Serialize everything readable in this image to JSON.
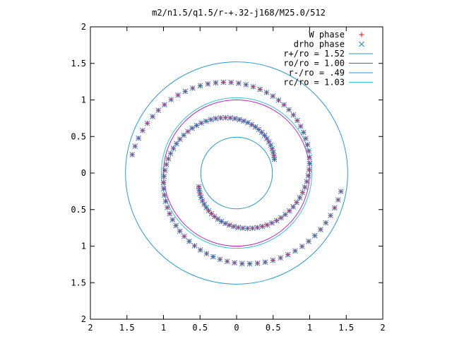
{
  "chart_data": {
    "type": "scatter",
    "title": "m2/n1.5/q1.5/r-+.32-j168/M25.0/512",
    "xlabel": "",
    "ylabel": "",
    "xlim": [
      -2,
      2
    ],
    "ylim": [
      -2,
      2
    ],
    "x_ticks": [
      -2,
      -1.5,
      -1,
      -0.5,
      0,
      0.5,
      1,
      1.5,
      2
    ],
    "y_ticks": [
      -2,
      -1.5,
      -1,
      -0.5,
      0,
      0.5,
      1,
      1.5,
      2
    ],
    "x_tick_labels": [
      "2",
      "1.5",
      "1",
      "0.5",
      "0",
      "0.5",
      "1",
      "1.5",
      "2"
    ],
    "y_tick_labels": [
      "2",
      "1.5",
      "1",
      "0.5",
      "0",
      "0.5",
      "1",
      "1.5",
      "2"
    ],
    "grid": false,
    "legend_position": "top-right",
    "legend": [
      {
        "label": "W phase",
        "marker": "plus",
        "color": "#e01010"
      },
      {
        "label": "drho phase",
        "marker": "cross",
        "color": "#1a80e0"
      },
      {
        "label": "r+/ro = 1.52",
        "marker": "line",
        "color": "#2a9ad0"
      },
      {
        "label": "ro/ro = 1.00",
        "marker": "line",
        "color": "#c020c0"
      },
      {
        "label": "r-/ro = .49",
        "marker": "line",
        "color": "#2a9ad0"
      },
      {
        "label": "rc/ro = 1.03",
        "marker": "line",
        "color": "#30c8d0"
      }
    ],
    "circles": [
      {
        "name": "r+/ro",
        "radius": 1.52,
        "color": "#2a9ad0"
      },
      {
        "name": "ro/ro",
        "radius": 1.0,
        "color": "#c020c0"
      },
      {
        "name": "r-/ro",
        "radius": 0.49,
        "color": "#2a9ad0"
      },
      {
        "name": "rc/ro",
        "radius": 1.03,
        "color": "#30c8d0"
      }
    ],
    "series": [
      {
        "label_ref": "W phase",
        "marker": "plus",
        "color": "#e01010",
        "arms": [
          {
            "r0": 0.55,
            "r1": 1.45,
            "theta0": 200,
            "sweep": 330,
            "n": 70
          },
          {
            "r0": 0.55,
            "r1": 1.45,
            "theta0": 20,
            "sweep": 330,
            "n": 70
          }
        ]
      },
      {
        "label_ref": "drho phase",
        "marker": "cross",
        "color": "#1a80e0",
        "arms": [
          {
            "r0": 0.55,
            "r1": 1.45,
            "theta0": 200,
            "sweep": 330,
            "n": 70
          },
          {
            "r0": 0.55,
            "r1": 1.45,
            "theta0": 20,
            "sweep": 330,
            "n": 70
          }
        ]
      }
    ]
  }
}
